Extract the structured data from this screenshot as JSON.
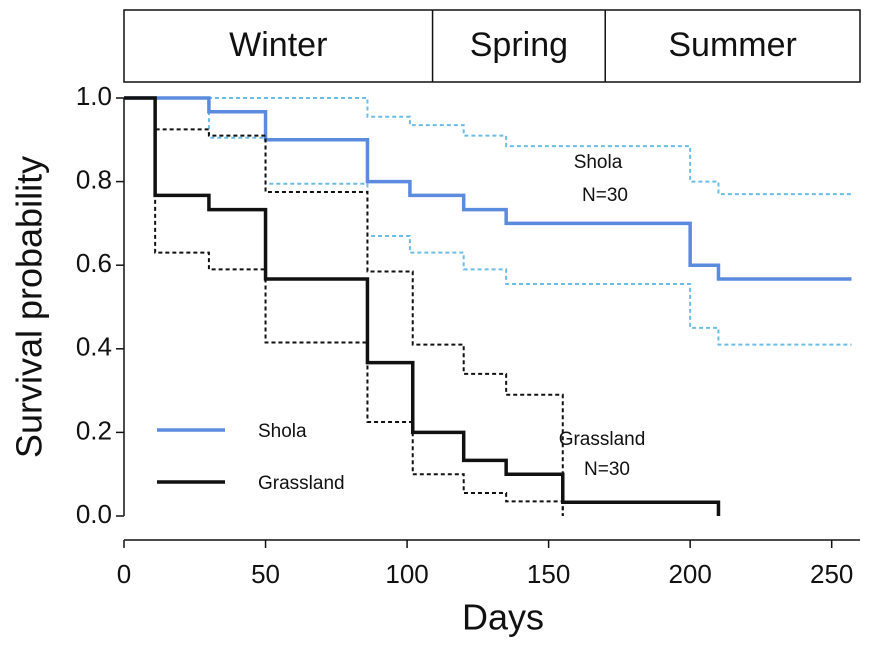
{
  "chart_data": {
    "type": "step",
    "xlabel": "Days",
    "ylabel": "Survival probability",
    "xlim": [
      0,
      260
    ],
    "ylim": [
      0,
      1
    ],
    "xticks": [
      0,
      50,
      100,
      150,
      200,
      250
    ],
    "yticks": [
      {
        "value": 0,
        "label": "0.0"
      },
      {
        "value": 0.2,
        "label": "0.2"
      },
      {
        "value": 0.4,
        "label": "0.4"
      },
      {
        "value": 0.6,
        "label": "0.6"
      },
      {
        "value": 0.8,
        "label": "0.8"
      },
      {
        "value": 1,
        "label": "1.0"
      }
    ],
    "seasons": [
      {
        "label": "Winter",
        "start": 0,
        "end": 109
      },
      {
        "label": "Spring",
        "start": 109,
        "end": 170
      },
      {
        "label": "Summer",
        "start": 170,
        "end": 260
      }
    ],
    "legend": "lower left",
    "series": [
      {
        "name": "Shola",
        "color": "#5b8bde",
        "ci_color": "#6cbde6",
        "x": [
          0,
          30,
          50,
          86,
          101,
          120,
          135,
          200,
          210,
          257
        ],
        "values": [
          1,
          0.967,
          0.9,
          0.8,
          0.767,
          0.733,
          0.7,
          0.6,
          0.567,
          0.567
        ],
        "ci_x": [
          0,
          30,
          50,
          86,
          101,
          120,
          135,
          200,
          210,
          257
        ],
        "ci_upper": [
          1,
          1,
          1,
          0.955,
          0.935,
          0.91,
          0.885,
          0.8,
          0.77,
          0.77
        ],
        "ci_lower": [
          1,
          0.905,
          0.795,
          0.67,
          0.63,
          0.59,
          0.555,
          0.45,
          0.41,
          0.41
        ],
        "annotation": [
          "Shola",
          "N=30"
        ]
      },
      {
        "name": "Grassland",
        "color": "#111111",
        "ci_color": "#111111",
        "x": [
          0,
          11,
          30,
          50,
          86,
          102,
          120,
          135,
          155,
          210
        ],
        "values": [
          1,
          0.767,
          0.733,
          0.567,
          0.367,
          0.2,
          0.133,
          0.1,
          0.033,
          0
        ],
        "ci_x": [
          0,
          11,
          30,
          50,
          86,
          102,
          120,
          135,
          155
        ],
        "ci_upper": [
          1,
          0.925,
          0.91,
          0.775,
          0.585,
          0.41,
          0.34,
          0.29,
          0
        ],
        "ci_lower": [
          1,
          0.63,
          0.59,
          0.415,
          0.225,
          0.1,
          0.055,
          0.035,
          0
        ],
        "annotation": [
          "Grassland",
          "N=30"
        ]
      }
    ]
  }
}
